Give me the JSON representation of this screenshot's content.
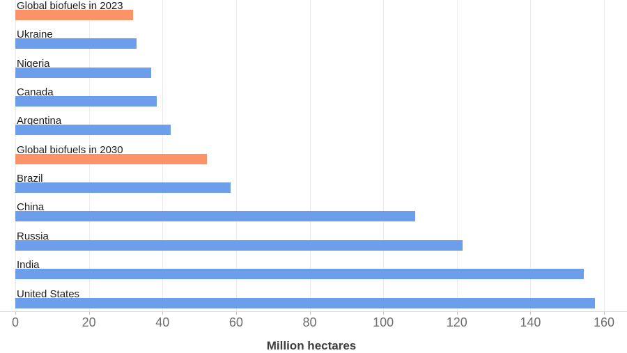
{
  "chart_data": {
    "type": "bar",
    "orientation": "horizontal",
    "title": "",
    "xlabel": "Million hectares",
    "ylabel": "",
    "xlim": [
      0,
      160
    ],
    "x_ticks": [
      0,
      20,
      40,
      60,
      80,
      100,
      120,
      140,
      160
    ],
    "grid": true,
    "legend_position": "none",
    "categories": [
      "Global biofuels in 2023",
      "Ukraine",
      "Nigeria",
      "Canada",
      "Argentina",
      "Global biofuels in 2030",
      "Brazil",
      "China",
      "Russia",
      "India",
      "United States"
    ],
    "values": [
      32,
      33,
      37,
      38.4,
      42.3,
      52,
      58.5,
      108.7,
      121.6,
      154.5,
      157.6
    ],
    "bar_colors": [
      "#FB9268",
      "#6D9EEB",
      "#6D9EEB",
      "#6D9EEB",
      "#6D9EEB",
      "#FB9268",
      "#6D9EEB",
      "#6D9EEB",
      "#6D9EEB",
      "#6D9EEB",
      "#6D9EEB"
    ]
  },
  "colors": {
    "bar_blue": "#6D9EEB",
    "bar_orange": "#FB9268",
    "gridline": "#ececec",
    "axis_line": "#dedede",
    "tick_mark": "#c2c2c2",
    "tick_label": "#6e6e6e",
    "category_label": "#1c1c1c",
    "axis_title": "#3d3d3d",
    "background": "#ffffff"
  }
}
